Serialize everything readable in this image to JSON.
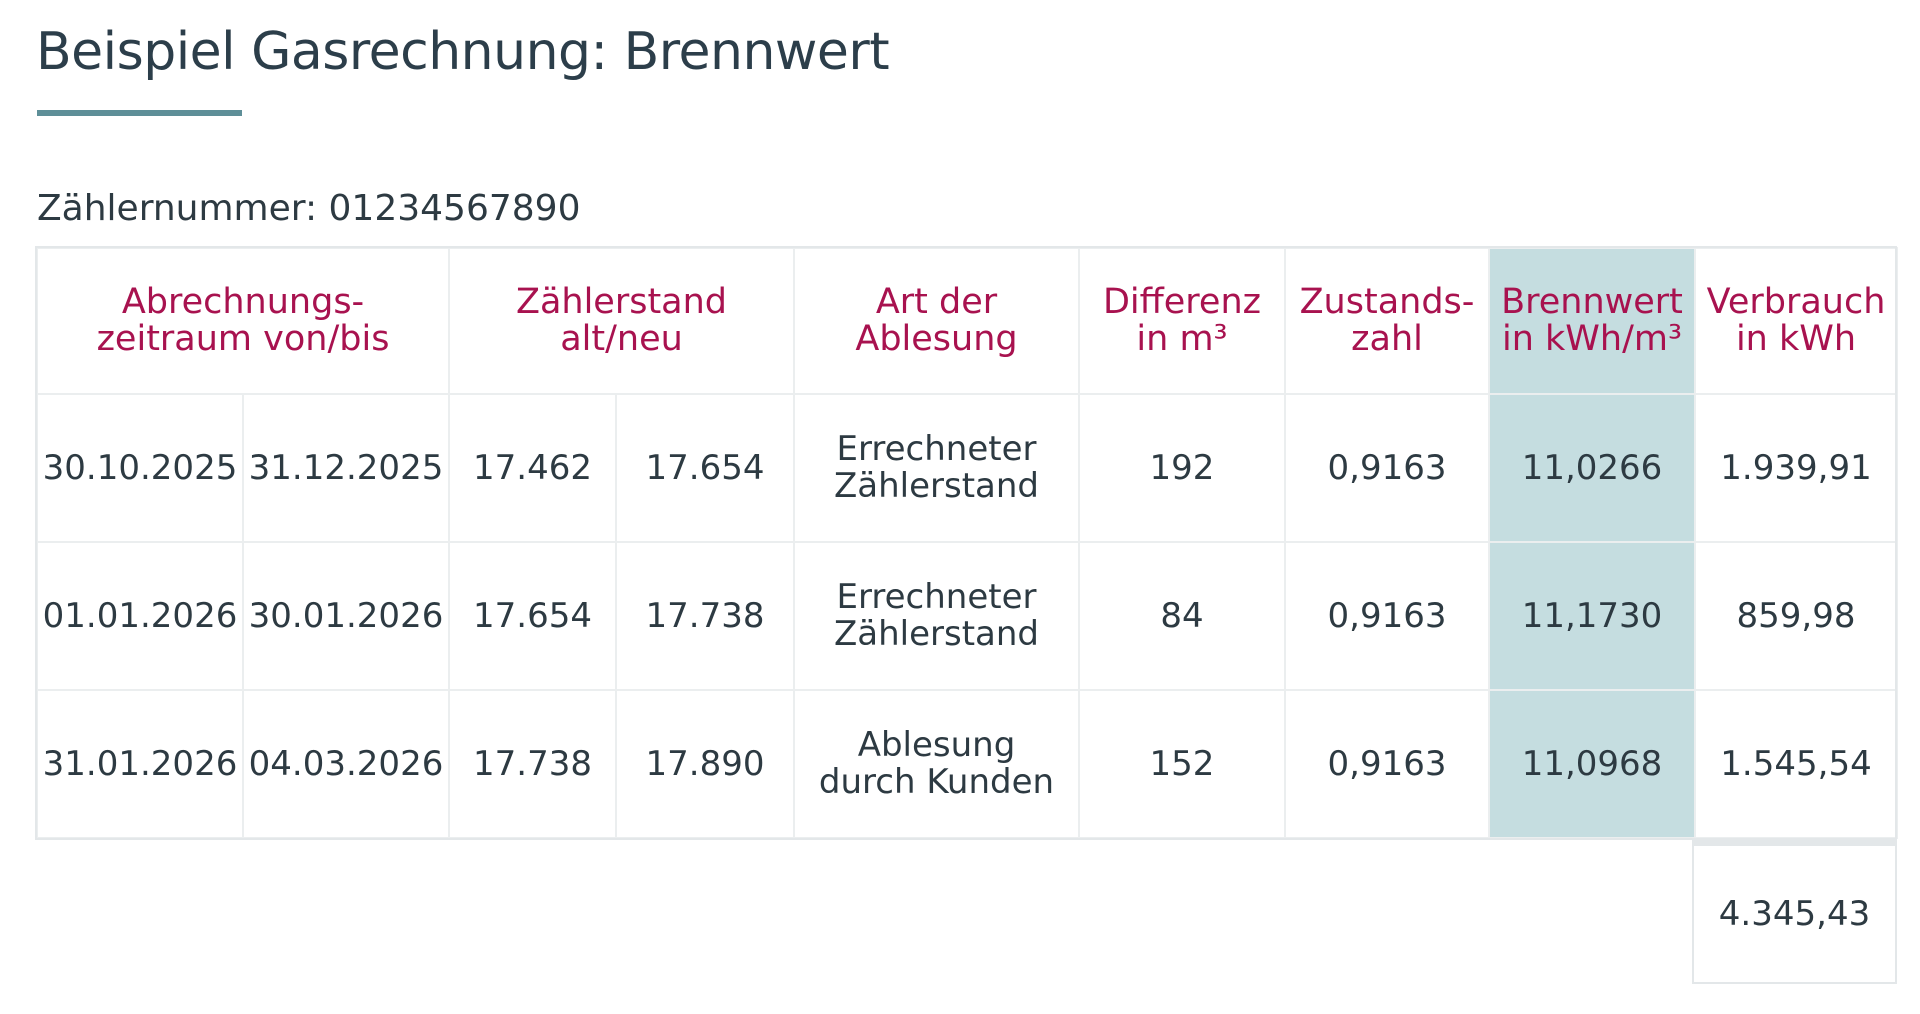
{
  "title": "Beispiel Gasrechnung: Brennwert",
  "meter": {
    "label": "Zählernummer:",
    "number": "01234567890"
  },
  "headers": {
    "period_line1": "Abrechnungs-",
    "period_line2": "zeitraum von/bis",
    "reading_line1": "Zählerstand",
    "reading_line2": "alt/neu",
    "type_line1": "Art der",
    "type_line2": "Ablesung",
    "diff_line1": "Differenz",
    "diff_line2": "in m³",
    "state_line1": "Zustands-",
    "state_line2": "zahl",
    "cal_line1": "Brennwert",
    "cal_line2": "in kWh/m³",
    "cons_line1": "Verbrauch",
    "cons_line2": "in kWh"
  },
  "rows": [
    {
      "from": "30.10.2025",
      "to": "31.12.2025",
      "old": "17.462",
      "new": "17.654",
      "type_line1": "Errechneter",
      "type_line2": "Zählerstand",
      "diff": "192",
      "state": "0,9163",
      "cal": "11,0266",
      "cons": "1.939,91"
    },
    {
      "from": "01.01.2026",
      "to": "30.01.2026",
      "old": "17.654",
      "new": "17.738",
      "type_line1": "Errechneter",
      "type_line2": "Zählerstand",
      "diff": "84",
      "state": "0,9163",
      "cal": "11,1730",
      "cons": "859,98"
    },
    {
      "from": "31.01.2026",
      "to": "04.03.2026",
      "old": "17.738",
      "new": "17.890",
      "type_line1": "Ablesung",
      "type_line2": "durch Kunden",
      "diff": "152",
      "state": "0,9163",
      "cal": "11,0968",
      "cons": "1.545,54"
    }
  ],
  "total": "4.345,43",
  "colors": {
    "header_text": "#a8124f",
    "highlight": "#c5dde0",
    "accent_line": "#5e8f98",
    "body_text": "#2d3a42"
  }
}
